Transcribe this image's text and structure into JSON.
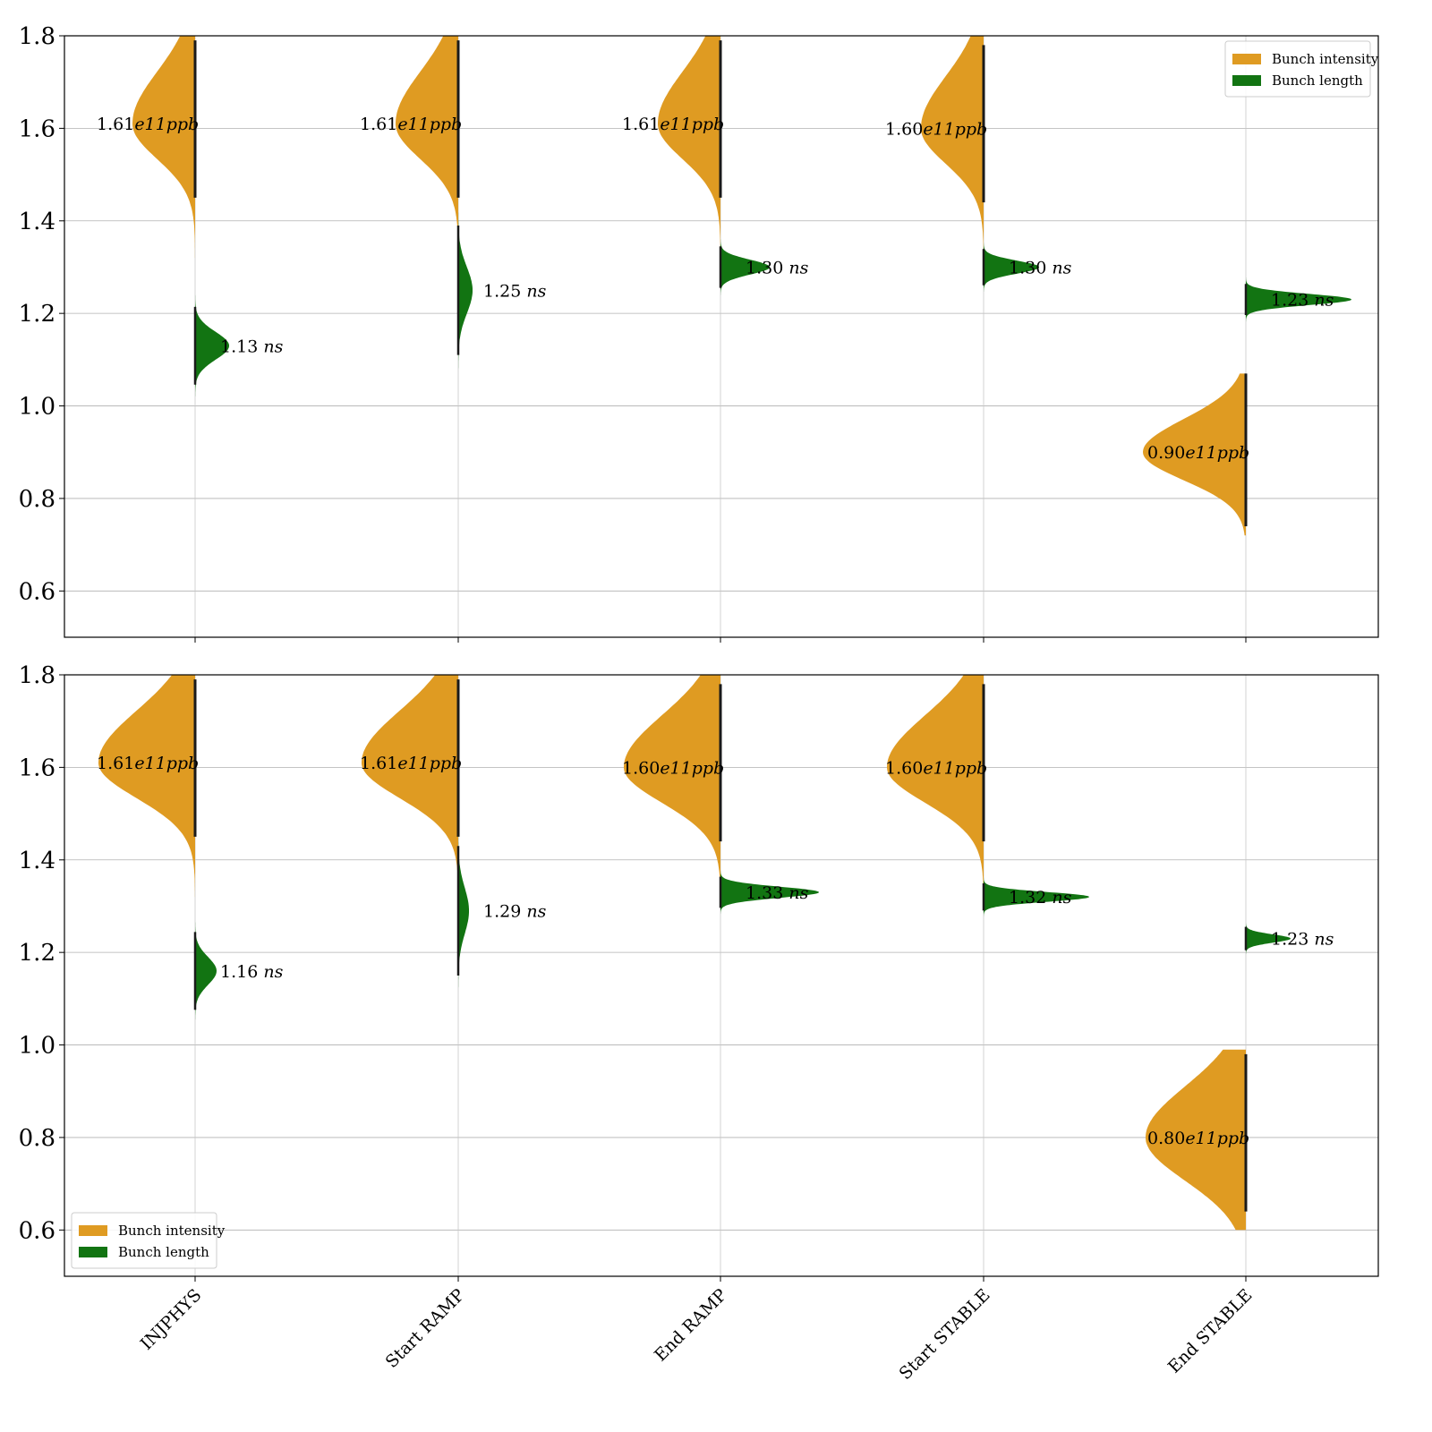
{
  "chart_data": {
    "type": "violin",
    "categories": [
      "INJPHYS",
      "Start RAMP",
      "End RAMP",
      "Start STABLE",
      "End STABLE"
    ],
    "ylim": [
      0.5,
      1.8
    ],
    "yticks": [
      0.6,
      0.8,
      1.0,
      1.2,
      1.4,
      1.6,
      1.8
    ],
    "legend_labels": [
      "Bunch intensity",
      "Bunch length"
    ],
    "colors": {
      "intensity": "#df9b22",
      "length": "#127412",
      "grid": "#b0b0b0"
    },
    "panels": [
      {
        "legend_position": "top-right",
        "intensity_labels": [
          "1.61$e11ppb$",
          "1.61$e11ppb$",
          "1.61$e11ppb$",
          "1.60$e11ppb$",
          "0.90$e11ppb$"
        ],
        "length_labels": [
          "1.13 $ns$",
          "1.25 $ns$",
          "1.30 $ns$",
          "1.30 $ns$",
          "1.23 $ns$"
        ],
        "intensity_values": [
          1.61,
          1.61,
          1.61,
          1.6,
          0.9
        ],
        "length_values": [
          1.13,
          1.25,
          1.3,
          1.3,
          1.23
        ]
      },
      {
        "legend_position": "bottom-left",
        "intensity_labels": [
          "1.61$e11ppb$",
          "1.61$e11ppb$",
          "1.60$e11ppb$",
          "1.60$e11ppb$",
          "0.80$e11ppb$"
        ],
        "length_labels": [
          "1.16 $ns$",
          "1.29 $ns$",
          "1.33 $ns$",
          "1.32 $ns$",
          "1.23 $ns$"
        ],
        "intensity_values": [
          1.61,
          1.61,
          1.6,
          1.6,
          0.8
        ],
        "length_values": [
          1.16,
          1.29,
          1.33,
          1.32,
          1.23
        ]
      }
    ]
  }
}
